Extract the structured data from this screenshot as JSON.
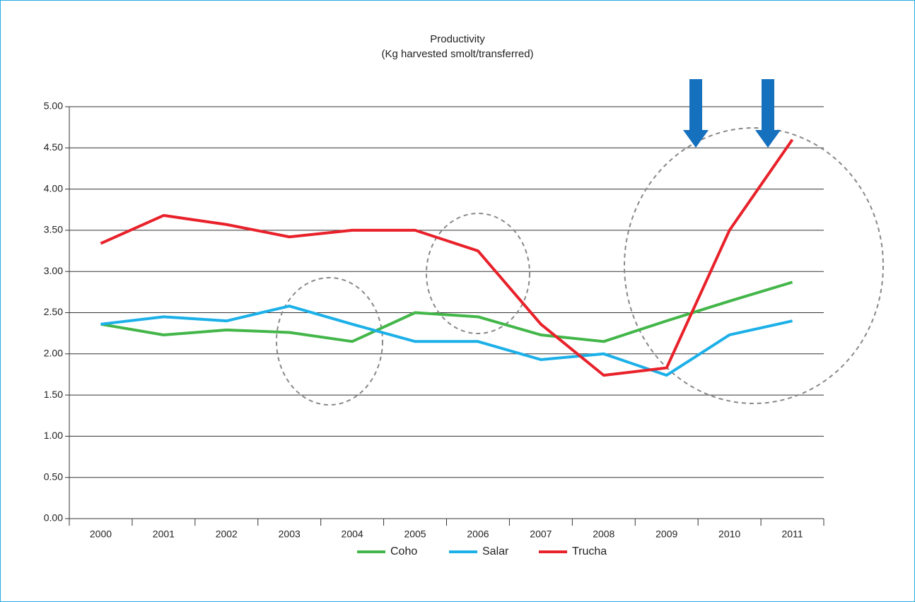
{
  "chart_data": {
    "type": "line",
    "title": "Productivity",
    "subtitle": "(Kg harvested smolt/transferred)",
    "categories": [
      "2000",
      "2001",
      "2002",
      "2003",
      "2004",
      "2005",
      "2006",
      "2007",
      "2008",
      "2009",
      "2010",
      "2011"
    ],
    "series": [
      {
        "name": "Coho",
        "color": "#43b649",
        "values": [
          2.36,
          2.23,
          2.29,
          2.26,
          2.15,
          2.5,
          2.45,
          2.23,
          2.15,
          2.4,
          2.64,
          2.87
        ]
      },
      {
        "name": "Salar",
        "color": "#1cb0e8",
        "values": [
          2.36,
          2.45,
          2.4,
          2.58,
          2.36,
          2.15,
          2.15,
          1.93,
          2.0,
          1.74,
          2.23,
          2.4
        ]
      },
      {
        "name": "Trucha",
        "color": "#e8212a",
        "values": [
          3.34,
          3.68,
          3.57,
          3.42,
          3.5,
          3.5,
          3.25,
          2.36,
          1.74,
          1.83,
          3.5,
          4.6
        ]
      }
    ],
    "ylim": [
      0,
      5
    ],
    "yticks": [
      {
        "value": 0,
        "label": "0.00"
      },
      {
        "value": 0.5,
        "label": "0.50"
      },
      {
        "value": 1,
        "label": "1.00"
      },
      {
        "value": 1.5,
        "label": "1.50"
      },
      {
        "value": 2,
        "label": "2.00"
      },
      {
        "value": 2.5,
        "label": "2.50"
      },
      {
        "value": 3,
        "label": "3.00"
      },
      {
        "value": 3.5,
        "label": "3.50"
      },
      {
        "value": 4,
        "label": "4.00"
      },
      {
        "value": 4.5,
        "label": "4.50"
      },
      {
        "value": 5,
        "label": "5.00"
      }
    ],
    "grid": true,
    "legend": "bottom"
  }
}
